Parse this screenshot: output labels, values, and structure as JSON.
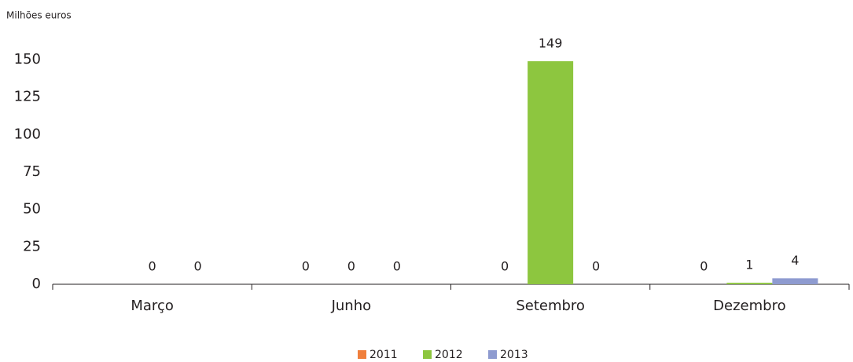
{
  "chart_data": {
    "type": "bar",
    "y_label": "Milhões euros",
    "categories": [
      "Março",
      "Junho",
      "Setembro",
      "Dezembro"
    ],
    "series": [
      {
        "name": "2011",
        "color": "#f07f3c",
        "values": [
          null,
          0,
          0,
          0
        ]
      },
      {
        "name": "2012",
        "color": "#8dc63f",
        "values": [
          0,
          0,
          149,
          1
        ]
      },
      {
        "name": "2013",
        "color": "#8e9bd0",
        "values": [
          0,
          0,
          0,
          4
        ]
      }
    ],
    "ylim": [
      0,
      150
    ],
    "yticks": [
      0,
      25,
      50,
      75,
      100,
      125,
      150
    ],
    "grid": false,
    "legend": "bottom"
  }
}
